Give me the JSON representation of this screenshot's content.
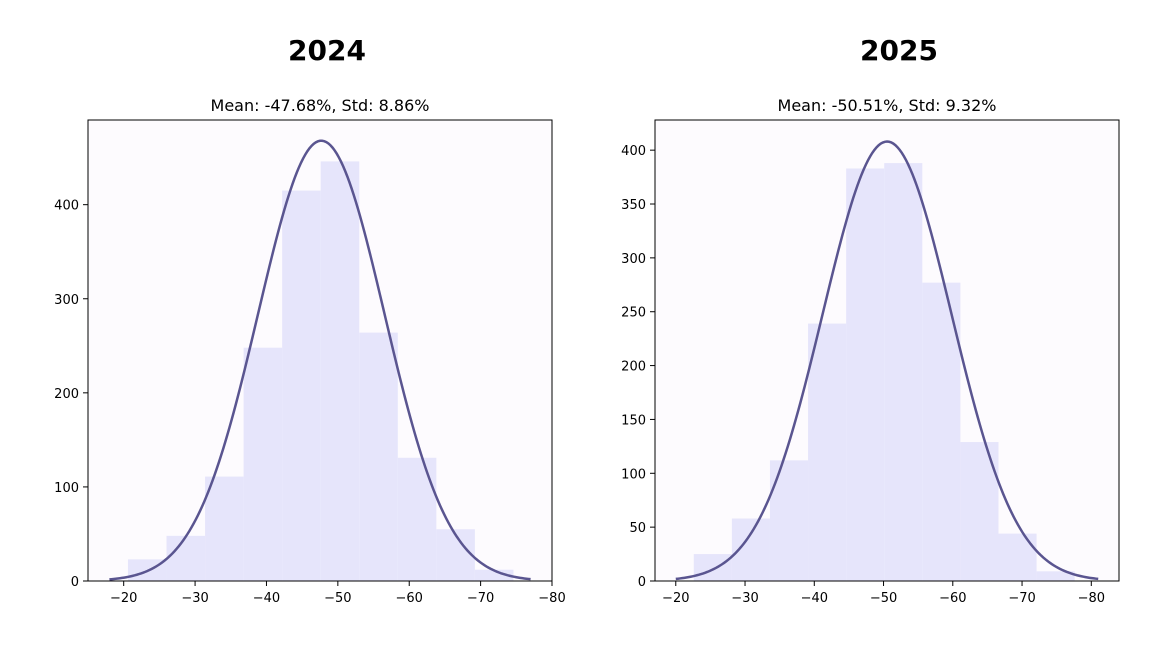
{
  "chart_data": [
    {
      "type": "bar",
      "title": "2024",
      "subtitle": "Mean: -47.68%, Std: 8.86%",
      "xlabel": "",
      "ylabel": "",
      "xlim": [
        -15,
        -80
      ],
      "ylim": [
        0,
        490
      ],
      "x_ticks": [
        -20,
        -30,
        -40,
        -50,
        -60,
        -70,
        -80
      ],
      "x_tick_labels": [
        "−20",
        "−30",
        "−40",
        "−50",
        "−60",
        "−70",
        "−80"
      ],
      "y_ticks": [
        0,
        100,
        200,
        300,
        400
      ],
      "y_tick_labels": [
        "0",
        "100",
        "200",
        "300",
        "400"
      ],
      "histogram": {
        "bin_edges": [
          -20.6,
          -26.0,
          -31.4,
          -36.8,
          -42.2,
          -47.6,
          -53.0,
          -58.4,
          -63.8,
          -69.2,
          -74.6
        ],
        "counts": [
          23,
          48,
          111,
          248,
          415,
          446,
          264,
          131,
          55,
          12
        ]
      },
      "normal_fit": {
        "mean": -47.68,
        "std": 8.86,
        "peak": 468,
        "x_range": [
          -18,
          -77
        ]
      },
      "grid": false,
      "colors": {
        "bars": "#e6e5fb",
        "curve": "#5a5590",
        "plot_bg": "#fdfbfe"
      }
    },
    {
      "type": "bar",
      "title": "2025",
      "subtitle": "Mean: -50.51%, Std: 9.32%",
      "xlabel": "",
      "ylabel": "",
      "xlim": [
        -17,
        -84
      ],
      "ylim": [
        0,
        428
      ],
      "x_ticks": [
        -20,
        -30,
        -40,
        -50,
        -60,
        -70,
        -80
      ],
      "x_tick_labels": [
        "−20",
        "−30",
        "−40",
        "−50",
        "−60",
        "−70",
        "−80"
      ],
      "y_ticks": [
        0,
        50,
        100,
        150,
        200,
        250,
        300,
        350,
        400
      ],
      "y_tick_labels": [
        "0",
        "50",
        "100",
        "150",
        "200",
        "250",
        "300",
        "350",
        "400"
      ],
      "histogram": {
        "bin_edges": [
          -22.6,
          -28.1,
          -33.6,
          -39.1,
          -44.6,
          -50.1,
          -55.6,
          -61.1,
          -66.6,
          -72.1,
          -77.6
        ],
        "counts": [
          25,
          58,
          112,
          239,
          383,
          388,
          277,
          129,
          44,
          9
        ]
      },
      "normal_fit": {
        "mean": -50.51,
        "std": 9.32,
        "peak": 408,
        "x_range": [
          -20,
          -81
        ]
      },
      "grid": false,
      "colors": {
        "bars": "#e6e5fb",
        "curve": "#5a5590",
        "plot_bg": "#fdfbfe"
      }
    }
  ]
}
